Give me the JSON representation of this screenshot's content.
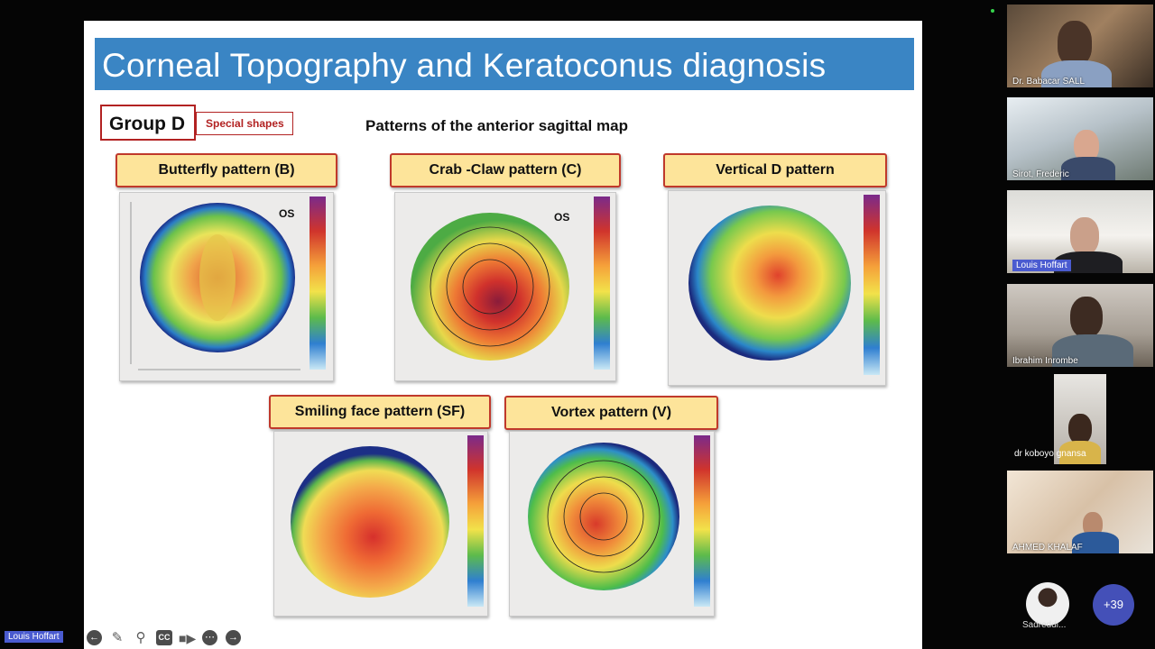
{
  "slide": {
    "title": "Corneal Topography and Keratoconus diagnosis",
    "group_label": "Group D",
    "group_tag": "Special shapes",
    "subtitle": "Patterns of the anterior sagittal map",
    "patterns": [
      {
        "label": "Butterfly pattern (B)",
        "eye": "OS"
      },
      {
        "label": "Crab -Claw pattern (C)",
        "eye": "OS"
      },
      {
        "label": "Vertical D pattern",
        "eye": ""
      },
      {
        "label": "Smiling face pattern (SF)",
        "eye": ""
      },
      {
        "label": "Vortex pattern (V)",
        "eye": ""
      }
    ]
  },
  "participants": [
    {
      "name": "Dr. Babacar SALL",
      "active": true
    },
    {
      "name": "Sirot, Frederic"
    },
    {
      "name": "Louis Hoffart",
      "highlighted": true
    },
    {
      "name": "Ibrahim Inrombe"
    },
    {
      "name": "dr koboyo gnansa"
    },
    {
      "name": "AHMED KHALAF"
    }
  ],
  "overflow": {
    "avatar_name": "Sadreddi...",
    "more_count": "+39"
  },
  "presenter": {
    "name": "Louis Hoffart"
  },
  "toolbar": {
    "icons": [
      "arrow-left-icon",
      "pen-icon",
      "magnifier-icon",
      "closed-caption-icon",
      "video-camera-icon",
      "more-icon",
      "arrow-right-icon"
    ],
    "cc_label": "CC"
  },
  "colors": {
    "title_bar": "#3a85c4",
    "label_fill": "#fde49a",
    "label_border": "#c0392b",
    "name_tag": "#4a5bd0",
    "badge": "#4450b8"
  }
}
